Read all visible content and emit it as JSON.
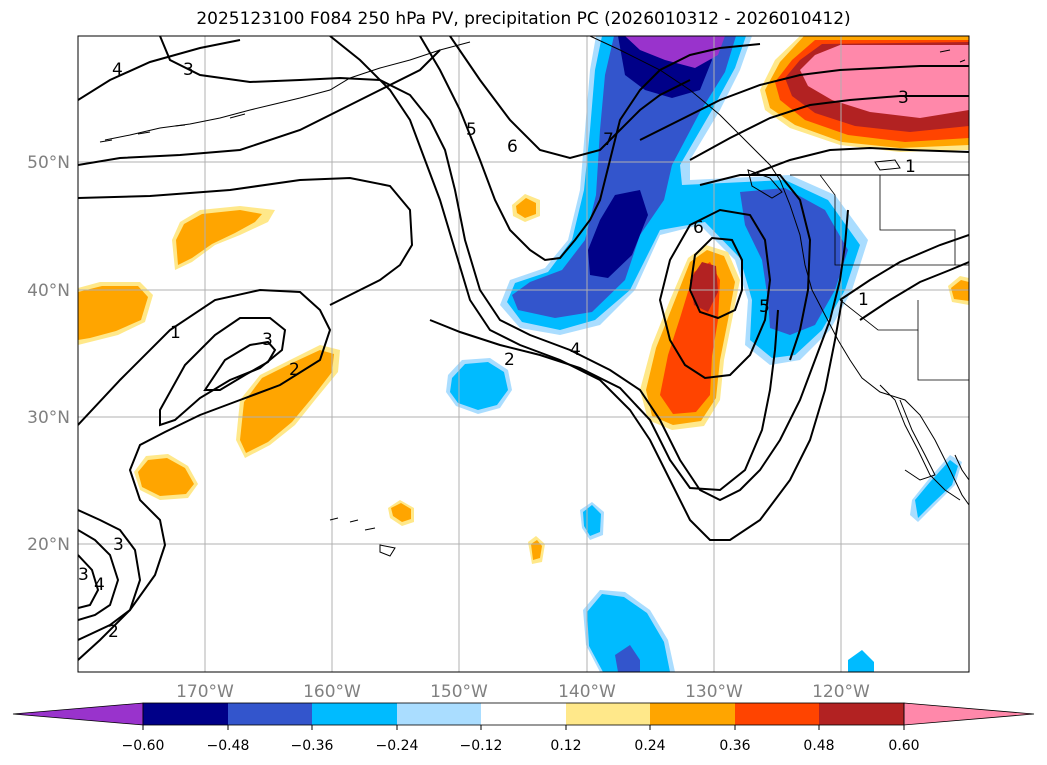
{
  "title": "2025123100 F084 250 hPa PV, precipitation PC (2026010312 - 2026010412)",
  "map": {
    "lat_labels": [
      "50°N",
      "40°N",
      "30°N",
      "20°N"
    ],
    "lon_labels": [
      "170°W",
      "160°W",
      "150°W",
      "140°W",
      "130°W",
      "120°W"
    ],
    "pv_contour_labels": [
      "4",
      "3",
      "5",
      "6",
      "7",
      "1",
      "3",
      "2",
      "2",
      "4",
      "6",
      "5",
      "1",
      "3",
      "1",
      "3",
      "4",
      "2",
      "3"
    ],
    "grid_lines": true
  },
  "colorbar": {
    "tick_labels": [
      "−0.60",
      "−0.48",
      "−0.36",
      "−0.24",
      "−0.12",
      "0.12",
      "0.24",
      "0.36",
      "0.48",
      "0.60"
    ],
    "colors": [
      "#9933cc",
      "#000088",
      "#3355cc",
      "#00bbff",
      "#aaddff",
      "#ffffff",
      "#ffe88a",
      "#ffa500",
      "#ff4400",
      "#b22222",
      "#ff88aa"
    ],
    "extend": "both"
  }
}
